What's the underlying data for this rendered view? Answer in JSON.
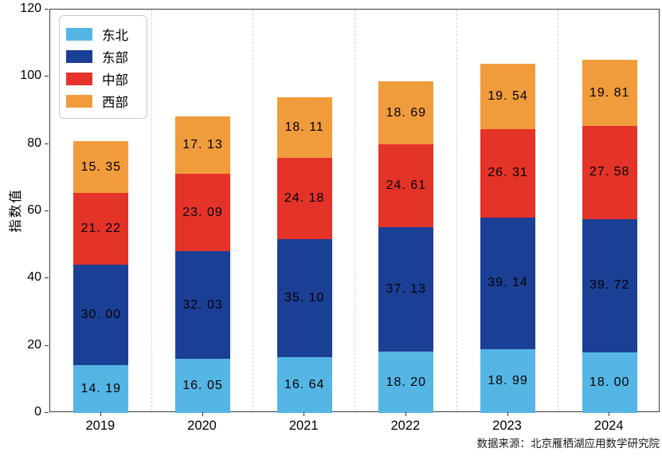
{
  "chart_data": {
    "type": "bar",
    "stacked": true,
    "categories": [
      "2019",
      "2020",
      "2021",
      "2022",
      "2023",
      "2024"
    ],
    "series": [
      {
        "name": "东北",
        "color": "#55b5e4",
        "values": [
          14.19,
          16.05,
          16.64,
          18.2,
          18.99,
          18.0
        ],
        "labels": [
          "14. 19",
          "16. 05",
          "16. 64",
          "18. 20",
          "18. 99",
          "18. 00"
        ]
      },
      {
        "name": "东部",
        "color": "#1c3f96",
        "values": [
          30.0,
          32.03,
          35.1,
          37.13,
          39.14,
          39.72
        ],
        "labels": [
          "30. 00",
          "32. 03",
          "35. 10",
          "37. 13",
          "39. 14",
          "39. 72"
        ]
      },
      {
        "name": "中部",
        "color": "#e43328",
        "values": [
          21.22,
          23.09,
          24.18,
          24.61,
          26.31,
          27.58
        ],
        "labels": [
          "21. 22",
          "23. 09",
          "24. 18",
          "24. 61",
          "26. 31",
          "27. 58"
        ]
      },
      {
        "name": "西部",
        "color": "#f09c3d",
        "values": [
          15.35,
          17.13,
          18.11,
          18.69,
          19.54,
          19.81
        ],
        "labels": [
          "15. 35",
          "17. 13",
          "18. 11",
          "18. 69",
          "19. 54",
          "19. 81"
        ]
      }
    ],
    "title": "",
    "xlabel": "",
    "ylabel": "指数值",
    "ylim": [
      0,
      120
    ],
    "yticks": [
      0,
      20,
      40,
      60,
      80,
      100,
      120
    ],
    "grid": "vertical-dashed-between-categories",
    "legend_position": "upper-left"
  },
  "footer": {
    "source": "数据来源：北京雁栖湖应用数学研究院"
  }
}
